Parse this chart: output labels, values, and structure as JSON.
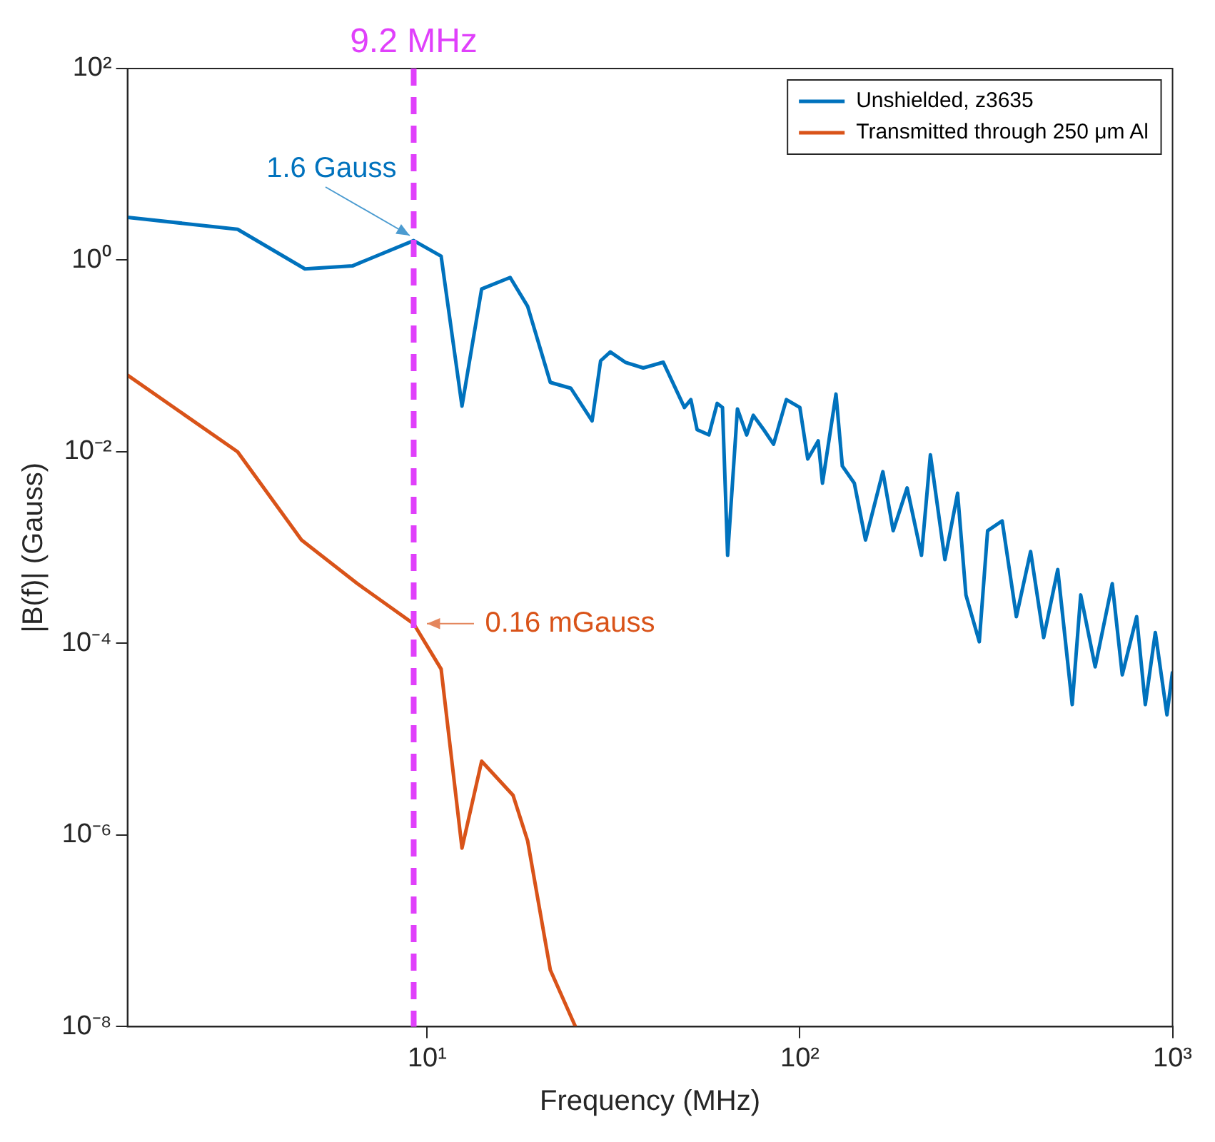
{
  "chart_data": {
    "type": "line",
    "xlabel": "Frequency (MHz)",
    "ylabel": "|B(f)| (Gauss)",
    "log": "xy",
    "grid": false,
    "legend": "top right",
    "marker": "none",
    "line_style": "solid",
    "xlim": [
      1.57,
      1000
    ],
    "xticks": [
      {
        "value": 10,
        "label": "10¹"
      },
      {
        "value": 100,
        "label": "10²"
      },
      {
        "value": 1000,
        "label": "10³"
      }
    ],
    "ylim": [
      1e-08,
      100
    ],
    "yticks": [
      {
        "value": 1e-08,
        "label": "10⁻⁸"
      },
      {
        "value": 1e-06,
        "label": "10⁻⁶"
      },
      {
        "value": 0.0001,
        "label": "10⁻⁴"
      },
      {
        "value": 0.01,
        "label": "10⁻²"
      },
      {
        "value": 1,
        "label": "10⁰"
      },
      {
        "value": 100,
        "label": "10²"
      }
    ],
    "series": [
      {
        "name": "Unshielded, z3635",
        "color": "#0072bd",
        "x": [
          1.57,
          3.1,
          4.7,
          6.3,
          9.2,
          10.9,
          12.4,
          14,
          16.7,
          18.6,
          21.4,
          24.3,
          27.7,
          29.2,
          31,
          34,
          38,
          43,
          49,
          51,
          53,
          57,
          60,
          62,
          64,
          68,
          72,
          75,
          80,
          85,
          92,
          100,
          105,
          112,
          115,
          125,
          130,
          140,
          150,
          167,
          178,
          194,
          212,
          224,
          245,
          265,
          279,
          303,
          319,
          349,
          381,
          416,
          451,
          492,
          538,
          567,
          620,
          689,
          733,
          801,
          845,
          899,
          966,
          1000
        ],
        "values": [
          2.8,
          2.1,
          0.81,
          0.87,
          1.6,
          1.1,
          0.03,
          0.5,
          0.66,
          0.33,
          0.053,
          0.046,
          0.021,
          0.089,
          0.11,
          0.086,
          0.075,
          0.086,
          0.029,
          0.035,
          0.017,
          0.015,
          0.032,
          0.029,
          0.00083,
          0.028,
          0.015,
          0.024,
          0.017,
          0.012,
          0.035,
          0.029,
          0.0084,
          0.013,
          0.0047,
          0.04,
          0.0071,
          0.0047,
          0.0012,
          0.0062,
          0.0015,
          0.0042,
          0.00083,
          0.0093,
          0.00075,
          0.0037,
          0.00032,
          0.000104,
          0.0015,
          0.0019,
          0.00019,
          0.00091,
          0.000115,
          0.00059,
          2.3e-05,
          0.00032,
          5.7e-05,
          0.00042,
          4.7e-05,
          0.00019,
          2.3e-05,
          0.00013,
          1.8e-05,
          5.1e-05
        ]
      },
      {
        "name": "Transmitted through 250 μm Al",
        "color": "#d95319",
        "x": [
          1.57,
          3.1,
          4.6,
          6.5,
          9.2,
          10.9,
          12.4,
          14,
          17,
          18.6,
          21.4,
          25
        ],
        "values": [
          0.063,
          0.01,
          0.0012,
          0.00042,
          0.00016,
          5.4e-05,
          7.3e-07,
          5.9e-06,
          2.6e-06,
          8.7e-07,
          3.9e-08,
          1e-08
        ]
      }
    ],
    "ref_lines": [
      {
        "axis": "x",
        "value": 9.2,
        "label": "9.2 MHz",
        "color": "#e040fb",
        "line_style": "dashed"
      }
    ],
    "annotations": [
      {
        "text": "1.6 Gauss",
        "x": 9.2,
        "y": 1.6
      },
      {
        "text": "0.16 mGauss",
        "x": 9.2,
        "y": 0.00016
      }
    ]
  }
}
